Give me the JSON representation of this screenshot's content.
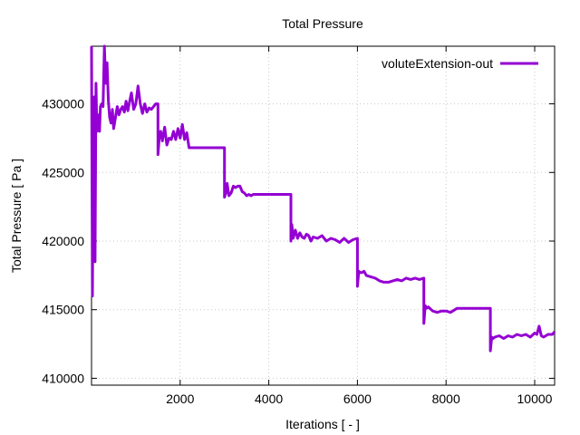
{
  "chart_data": {
    "type": "line",
    "title": "Total Pressure",
    "xlabel": "Iterations [ - ]",
    "ylabel": "Total Pressure [ Pa ]",
    "xlim": [
      0,
      10450
    ],
    "ylim": [
      409500,
      434200
    ],
    "xticks": [
      2000,
      4000,
      6000,
      8000,
      10000
    ],
    "xtick_labels": [
      "2000",
      "4000",
      "6000",
      "8000",
      "10000"
    ],
    "yticks": [
      410000,
      415000,
      420000,
      425000,
      430000
    ],
    "ytick_labels": [
      "410000",
      "415000",
      "420000",
      "425000",
      "430000"
    ],
    "grid": true,
    "legend_position": "top-right",
    "series": [
      {
        "name": "voluteExtension-out",
        "color": "#9400d3",
        "x": [
          0,
          20,
          40,
          60,
          80,
          100,
          120,
          150,
          180,
          200,
          230,
          260,
          290,
          320,
          350,
          380,
          410,
          440,
          470,
          500,
          540,
          580,
          620,
          660,
          700,
          740,
          780,
          820,
          860,
          900,
          950,
          1000,
          1050,
          1100,
          1150,
          1200,
          1250,
          1300,
          1350,
          1400,
          1450,
          1500,
          1500,
          1530,
          1560,
          1600,
          1650,
          1700,
          1750,
          1800,
          1850,
          1900,
          1950,
          2000,
          2050,
          2100,
          2150,
          2200,
          2300,
          2500,
          2700,
          2900,
          3000,
          3000,
          3030,
          3060,
          3100,
          3150,
          3200,
          3250,
          3300,
          3350,
          3400,
          3450,
          3500,
          3550,
          3600,
          3650,
          3700,
          4000,
          4300,
          4500,
          4500,
          4520,
          4550,
          4600,
          4650,
          4700,
          4750,
          4800,
          4850,
          4900,
          4950,
          5000,
          5100,
          5200,
          5300,
          5400,
          5500,
          5600,
          5700,
          5800,
          5900,
          6000,
          6000,
          6030,
          6060,
          6100,
          6150,
          6200,
          6300,
          6400,
          6500,
          6600,
          6700,
          6800,
          6900,
          7000,
          7100,
          7200,
          7300,
          7400,
          7500,
          7500,
          7530,
          7560,
          7600,
          7700,
          7800,
          7900,
          8000,
          8100,
          8200,
          8250,
          8300,
          8500,
          8700,
          9000,
          9000,
          9030,
          9060,
          9100,
          9200,
          9300,
          9400,
          9500,
          9600,
          9700,
          9800,
          9900,
          10000,
          10050,
          10100,
          10150,
          10200,
          10300,
          10400,
          10450
        ],
        "y": [
          434200,
          416000,
          429000,
          430500,
          418500,
          431500,
          428000,
          429200,
          428000,
          429800,
          430000,
          429800,
          434200,
          431500,
          433000,
          430200,
          429000,
          428600,
          429600,
          428200,
          429000,
          429800,
          429200,
          429600,
          429800,
          429400,
          430200,
          429500,
          430200,
          430800,
          429600,
          430000,
          431300,
          430000,
          429300,
          430000,
          429400,
          429700,
          429600,
          429800,
          430000,
          430000,
          426300,
          427600,
          428000,
          427300,
          428300,
          427000,
          427500,
          427400,
          428000,
          427400,
          428200,
          427500,
          428500,
          427400,
          427900,
          426800,
          426800,
          426800,
          426800,
          426800,
          426800,
          423200,
          423500,
          424200,
          423300,
          423500,
          424000,
          423900,
          424000,
          424000,
          423600,
          423500,
          423300,
          423400,
          423300,
          423400,
          423400,
          423400,
          423400,
          423400,
          420000,
          421200,
          420200,
          420800,
          420200,
          420600,
          420300,
          420200,
          420500,
          420400,
          420000,
          420300,
          420200,
          420400,
          420000,
          420200,
          420100,
          419900,
          420200,
          419900,
          420100,
          420200,
          416700,
          417800,
          417700,
          417700,
          417800,
          417500,
          417400,
          417300,
          417100,
          417000,
          417000,
          417100,
          417200,
          417100,
          417300,
          417200,
          417300,
          417200,
          417300,
          414000,
          415300,
          415100,
          415200,
          414900,
          414800,
          414900,
          414900,
          414800,
          415000,
          415100,
          415100,
          415100,
          415100,
          415100,
          412000,
          413000,
          412900,
          413000,
          413100,
          412900,
          413100,
          413000,
          413200,
          413100,
          413200,
          413000,
          413300,
          413200,
          413800,
          413100,
          413000,
          413200,
          413200,
          413400
        ]
      }
    ]
  }
}
